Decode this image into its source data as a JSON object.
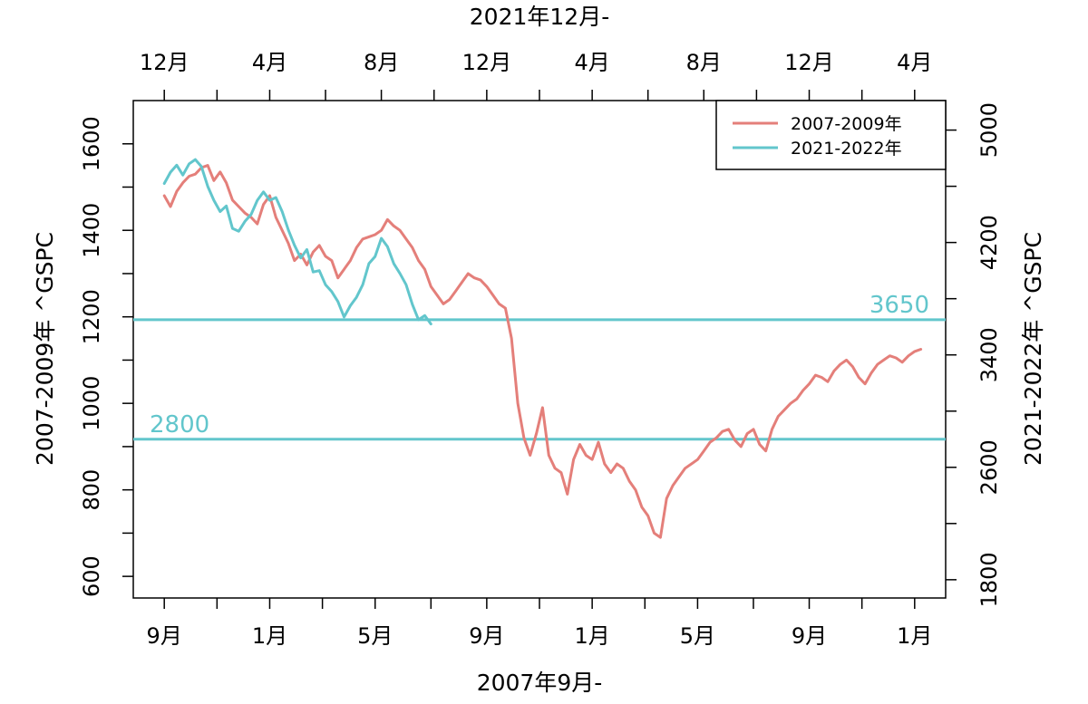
{
  "chart_data": {
    "type": "line",
    "title": "",
    "bottom_axis": {
      "label": "2007年9月-",
      "ticks": [
        "9月",
        "1月",
        "5月",
        "9月",
        "1月",
        "5月",
        "9月",
        "1月"
      ],
      "tick_weeks": [
        0,
        17,
        34,
        52,
        69,
        86,
        104,
        121
      ]
    },
    "top_axis": {
      "label": "2021年12月-",
      "ticks": [
        "12月",
        "4月",
        "8月",
        "12月",
        "4月",
        "8月",
        "12月",
        "4月"
      ],
      "tick_weeks": [
        0,
        17,
        35,
        52,
        69,
        87,
        104,
        121
      ]
    },
    "left_axis": {
      "label": "2007-2009年 ^GSPC",
      "ylim": [
        550,
        1700
      ],
      "ticks": [
        600,
        800,
        1000,
        1200,
        1400,
        1600
      ]
    },
    "right_axis": {
      "label": "2021-2022年 ^GSPC",
      "ylim": [
        1670,
        5210
      ],
      "ticks": [
        1800,
        2600,
        3400,
        4200,
        5000
      ]
    },
    "x_range_weeks": [
      -5,
      126
    ],
    "reference_lines": [
      {
        "label": "3650",
        "value": 3650,
        "axis": "right"
      },
      {
        "label": "2800",
        "value": 2800,
        "axis": "right"
      }
    ],
    "legend": {
      "position": "top-right",
      "entries": [
        {
          "label": "2007-2009年",
          "color": "#e47f7a"
        },
        {
          "label": "2021-2022年",
          "color": "#62c6cc"
        }
      ]
    },
    "series": [
      {
        "name": "2007-2009年",
        "axis": "left",
        "color": "#e47f7a",
        "x_weeks": [
          0,
          1,
          2,
          3,
          4,
          5,
          6,
          7,
          8,
          9,
          10,
          11,
          12,
          13,
          14,
          15,
          16,
          17,
          18,
          19,
          20,
          21,
          22,
          23,
          24,
          25,
          26,
          27,
          28,
          29,
          30,
          31,
          32,
          33,
          34,
          35,
          36,
          37,
          38,
          39,
          40,
          41,
          42,
          43,
          44,
          45,
          46,
          47,
          48,
          49,
          50,
          51,
          52,
          53,
          54,
          55,
          56,
          57,
          58,
          59,
          60,
          61,
          62,
          63,
          64,
          65,
          66,
          67,
          68,
          69,
          70,
          71,
          72,
          73,
          74,
          75,
          76,
          77,
          78,
          79,
          80,
          81,
          82,
          83,
          84,
          85,
          86,
          87,
          88,
          89,
          90,
          91,
          92,
          93,
          94,
          95,
          96,
          97,
          98,
          99,
          100,
          101,
          102,
          103,
          104,
          105,
          106,
          107,
          108,
          109,
          110,
          111,
          112,
          113,
          114,
          115,
          116,
          117,
          118,
          119,
          120,
          121,
          122
        ],
        "values": [
          1480,
          1455,
          1490,
          1510,
          1525,
          1530,
          1545,
          1550,
          1515,
          1535,
          1510,
          1470,
          1455,
          1440,
          1430,
          1415,
          1460,
          1480,
          1430,
          1400,
          1370,
          1330,
          1345,
          1320,
          1350,
          1365,
          1340,
          1330,
          1290,
          1310,
          1330,
          1360,
          1380,
          1385,
          1390,
          1400,
          1425,
          1410,
          1400,
          1380,
          1360,
          1330,
          1310,
          1270,
          1250,
          1230,
          1240,
          1260,
          1280,
          1300,
          1290,
          1285,
          1270,
          1250,
          1230,
          1220,
          1150,
          1000,
          920,
          880,
          930,
          990,
          880,
          850,
          840,
          790,
          870,
          905,
          880,
          870,
          910,
          860,
          840,
          860,
          850,
          820,
          800,
          760,
          740,
          700,
          690,
          780,
          810,
          830,
          850,
          860,
          870,
          890,
          910,
          920,
          935,
          940,
          915,
          900,
          930,
          940,
          905,
          890,
          940,
          970,
          985,
          1000,
          1010,
          1030,
          1045,
          1065,
          1060,
          1050,
          1075,
          1090,
          1100,
          1085,
          1060,
          1045,
          1070,
          1090,
          1100,
          1110,
          1105,
          1095,
          1110,
          1120,
          1125
        ]
      },
      {
        "name": "2021-2022年",
        "axis": "right",
        "color": "#62c6cc",
        "x_weeks": [
          0,
          1,
          2,
          3,
          4,
          5,
          6,
          7,
          8,
          9,
          10,
          11,
          12,
          13,
          14,
          15,
          16,
          17,
          18,
          19,
          20,
          21,
          22,
          23,
          24,
          25,
          26,
          27,
          28,
          29,
          30,
          31,
          32,
          33,
          34,
          35,
          36,
          37,
          38,
          39,
          40,
          41,
          42,
          43
        ],
        "values": [
          4620,
          4700,
          4750,
          4680,
          4760,
          4790,
          4740,
          4600,
          4500,
          4420,
          4460,
          4300,
          4280,
          4350,
          4400,
          4500,
          4560,
          4500,
          4520,
          4420,
          4290,
          4180,
          4090,
          4150,
          3990,
          4000,
          3900,
          3850,
          3780,
          3670,
          3750,
          3810,
          3900,
          4050,
          4100,
          4230,
          4170,
          4050,
          3980,
          3900,
          3760,
          3650,
          3680,
          3620
        ]
      }
    ]
  }
}
